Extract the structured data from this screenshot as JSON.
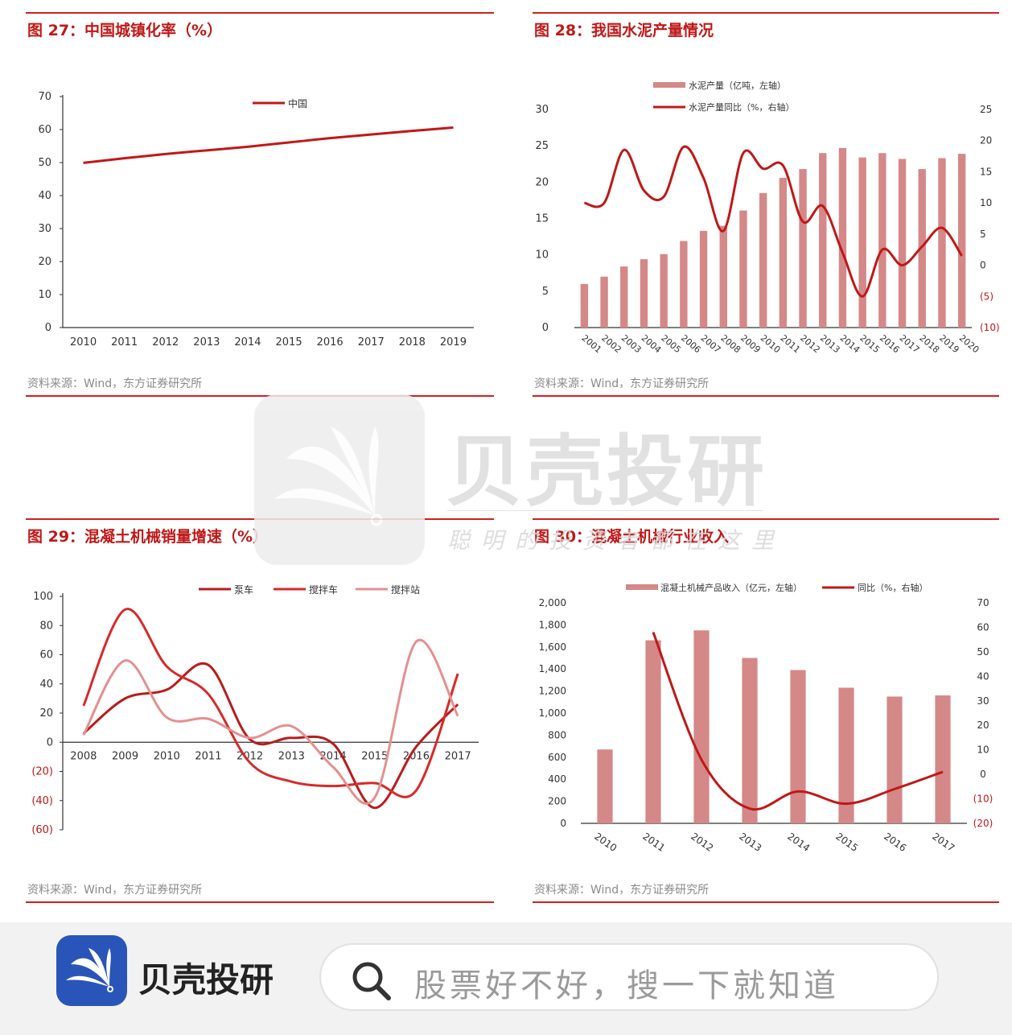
{
  "watermark": {
    "brand": "贝壳投研",
    "slogan": "聪明的投资者都在这里"
  },
  "footer": {
    "brand": "贝壳投研",
    "search_placeholder": "股票好不好，搜一下就知道",
    "icons": [
      "app-logo-icon",
      "search-icon"
    ]
  },
  "colors": {
    "accent": "#d21f1f",
    "title": "#c01818",
    "bar": "#d48888",
    "line": "#c01818"
  },
  "panels": [
    {
      "title": "图 27：中国城镇化率（%）",
      "source": "资料来源：Wind，东方证券研究所",
      "chart_data": {
        "type": "line",
        "categories": [
          "2010",
          "2011",
          "2012",
          "2013",
          "2014",
          "2015",
          "2016",
          "2017",
          "2018",
          "2019"
        ],
        "series": [
          {
            "name": "中国",
            "values": [
              49.9,
              51.3,
              52.6,
              53.7,
              54.8,
              56.1,
              57.4,
              58.5,
              59.6,
              60.6
            ]
          }
        ],
        "yticks": [
          "0",
          "10",
          "20",
          "30",
          "40",
          "50",
          "60",
          "70"
        ],
        "ylim": [
          0,
          70
        ],
        "legend": "top-center"
      }
    },
    {
      "title": "图 28：我国水泥产量情况",
      "source": "资料来源：Wind，东方证券研究所",
      "chart_data": {
        "type": "bar",
        "categories": [
          "2001",
          "2002",
          "2003",
          "2004",
          "2005",
          "2006",
          "2007",
          "2008",
          "2009",
          "2010",
          "2011",
          "2012",
          "2013",
          "2014",
          "2015",
          "2016",
          "2017",
          "2018",
          "2019",
          "2020"
        ],
        "series": [
          {
            "name": "水泥产量（亿吨，左轴）",
            "type": "bar",
            "axis": "left",
            "values": [
              6.0,
              7.0,
              8.4,
              9.4,
              10.1,
              11.9,
              13.3,
              14.0,
              16.1,
              18.5,
              20.6,
              21.8,
              24.0,
              24.7,
              23.4,
              24.0,
              23.2,
              21.8,
              23.3,
              23.9
            ]
          },
          {
            "name": "水泥产量同比（%，右轴）",
            "type": "line",
            "axis": "right",
            "values": [
              10,
              10,
              18.5,
              12,
              11,
              19,
              14,
              5.5,
              18,
              15.5,
              16,
              7,
              9.5,
              2,
              -5,
              2.5,
              0,
              3,
              6,
              1.5
            ]
          }
        ],
        "yticks_left": [
          "0",
          "5",
          "10",
          "15",
          "20",
          "25",
          "30"
        ],
        "yticks_right": [
          "(10)",
          "(5)",
          "0",
          "5",
          "10",
          "15",
          "20",
          "25"
        ],
        "ylim_left": [
          0,
          30
        ],
        "ylim_right": [
          -10,
          25
        ],
        "legend": "top-center"
      }
    },
    {
      "title": "图 29：混凝土机械销量增速（%）",
      "source": "资料来源：Wind，东方证券研究所",
      "chart_data": {
        "type": "line",
        "categories": [
          "2008",
          "2009",
          "2010",
          "2011",
          "2012",
          "2013",
          "2014",
          "2015",
          "2016",
          "2017"
        ],
        "series": [
          {
            "name": "泵车",
            "values": [
              6,
              30,
              36,
              53,
              2,
              3,
              -1,
              -45,
              -3,
              26
            ]
          },
          {
            "name": "搅拌车",
            "values": [
              25,
              91,
              52,
              33,
              -14,
              -27,
              -30,
              -28,
              -33,
              47
            ]
          },
          {
            "name": "搅拌站",
            "values": [
              5,
              56,
              17,
              16,
              3,
              11,
              -17,
              -38,
              69,
              18
            ]
          }
        ],
        "yticks": [
          "100",
          "80",
          "60",
          "40",
          "20",
          "0",
          "(20)",
          "(40)",
          "(60)"
        ],
        "ylim": [
          -60,
          100
        ],
        "legend": "top-center"
      }
    },
    {
      "title": "图 30：混凝土机械行业收入",
      "source": "资料来源：Wind，东方证券研究所",
      "chart_data": {
        "type": "bar",
        "categories": [
          "2010",
          "2011",
          "2012",
          "2013",
          "2014",
          "2015",
          "2016",
          "2017"
        ],
        "series": [
          {
            "name": "混凝土机械产品收入（亿元，左轴）",
            "type": "bar",
            "axis": "left",
            "values": [
              670,
              1660,
              1750,
              1500,
              1390,
              1230,
              1150,
              1160
            ]
          },
          {
            "name": "同比（%，右轴）",
            "type": "line",
            "axis": "right",
            "values": [
              null,
              58,
              6,
              -14,
              -7,
              -12,
              -6,
              1
            ]
          }
        ],
        "yticks_left": [
          "0",
          "200",
          "400",
          "600",
          "800",
          "1,000",
          "1,200",
          "1,400",
          "1,600",
          "1,800",
          "2,000"
        ],
        "yticks_right": [
          "(20)",
          "(10)",
          "0",
          "10",
          "20",
          "30",
          "40",
          "50",
          "60",
          "70"
        ],
        "ylim_left": [
          0,
          2000
        ],
        "ylim_right": [
          -20,
          70
        ],
        "legend": "top-center"
      }
    }
  ]
}
